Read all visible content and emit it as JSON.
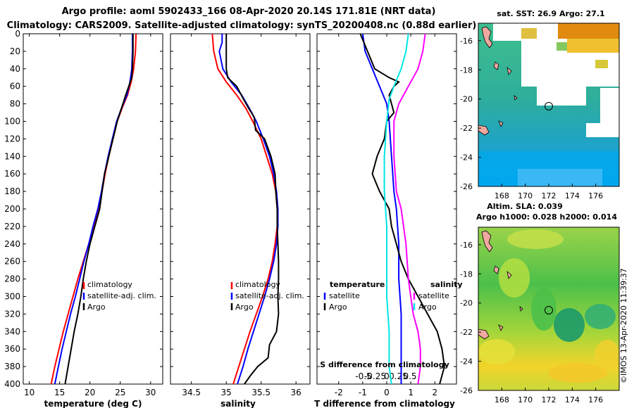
{
  "title": {
    "line1": "Argo profile: aoml 5902433_166 08-Apr-2020 20.14S 171.81E (NRT data)",
    "line2": "Climatology: CARS2009. Satellite-adjusted climatology: synTS_20200408.nc (0.88d earlier)"
  },
  "colors": {
    "climatology": "#ff0000",
    "satellite": "#0000ff",
    "argo": "#000000",
    "sat_temp": "#00e5e5",
    "sat_sal": "#ff00ff"
  },
  "depth_axis": {
    "ticks": [
      0,
      20,
      40,
      60,
      80,
      100,
      120,
      140,
      160,
      180,
      200,
      220,
      240,
      260,
      280,
      300,
      320,
      340,
      360,
      380,
      400
    ],
    "labels": [
      "0",
      "20",
      "40",
      "60",
      "80",
      "100",
      "120",
      "140",
      "160",
      "180",
      "200",
      "220",
      "240",
      "260",
      "280",
      "300",
      "320",
      "340",
      "360",
      "380",
      "400"
    ],
    "range": [
      0,
      400
    ]
  },
  "legend_text": {
    "climatology": "climatology",
    "satellite_adj": "satellite-adj. clim.",
    "argo": "Argo",
    "temperature": "temperature",
    "salinity": "salinity",
    "satellite": "satellite"
  },
  "chart_data": [
    {
      "type": "line",
      "panel": "temperature",
      "xlabel": "temperature (deg C)",
      "ylabel": "depth",
      "xlim": [
        9,
        32
      ],
      "ylim": [
        400,
        0
      ],
      "xticks": [
        10,
        15,
        20,
        25,
        30
      ],
      "xtick_labels": [
        "10",
        "15",
        "20",
        "25",
        "30"
      ],
      "series": [
        {
          "name": "climatology",
          "color": "#ff0000",
          "points": [
            [
              27.6,
              0
            ],
            [
              27.5,
              20
            ],
            [
              27.2,
              40
            ],
            [
              26.8,
              55
            ],
            [
              26.2,
              70
            ],
            [
              25.3,
              85
            ],
            [
              24.5,
              100
            ],
            [
              23.8,
              120
            ],
            [
              23.1,
              140
            ],
            [
              22.5,
              160
            ],
            [
              22.0,
              180
            ],
            [
              21.4,
              200
            ],
            [
              20.6,
              220
            ],
            [
              19.8,
              240
            ],
            [
              18.9,
              260
            ],
            [
              18.0,
              280
            ],
            [
              17.2,
              300
            ],
            [
              16.4,
              320
            ],
            [
              15.6,
              340
            ],
            [
              14.9,
              360
            ],
            [
              14.2,
              380
            ],
            [
              13.6,
              400
            ]
          ]
        },
        {
          "name": "satellite-adj. clim.",
          "color": "#0000ff",
          "points": [
            [
              27.0,
              0
            ],
            [
              27.0,
              20
            ],
            [
              26.9,
              40
            ],
            [
              26.6,
              55
            ],
            [
              26.1,
              70
            ],
            [
              25.2,
              85
            ],
            [
              24.4,
              100
            ],
            [
              23.7,
              120
            ],
            [
              23.0,
              140
            ],
            [
              22.4,
              160
            ],
            [
              21.9,
              180
            ],
            [
              21.3,
              200
            ],
            [
              20.5,
              220
            ],
            [
              19.8,
              240
            ],
            [
              19.0,
              260
            ],
            [
              18.3,
              280
            ],
            [
              17.6,
              300
            ],
            [
              16.8,
              320
            ],
            [
              16.1,
              340
            ],
            [
              15.4,
              360
            ],
            [
              14.8,
              380
            ],
            [
              14.2,
              400
            ]
          ]
        },
        {
          "name": "Argo",
          "color": "#000000",
          "points": [
            [
              27.1,
              0
            ],
            [
              27.1,
              20
            ],
            [
              27.0,
              40
            ],
            [
              26.9,
              50
            ],
            [
              26.4,
              60
            ],
            [
              25.9,
              70
            ],
            [
              25.2,
              85
            ],
            [
              24.5,
              100
            ],
            [
              23.8,
              120
            ],
            [
              23.1,
              140
            ],
            [
              22.4,
              160
            ],
            [
              22.0,
              180
            ],
            [
              21.6,
              200
            ],
            [
              20.8,
              220
            ],
            [
              20.0,
              240
            ],
            [
              19.4,
              260
            ],
            [
              18.9,
              280
            ],
            [
              18.5,
              300
            ],
            [
              18.0,
              320
            ],
            [
              17.4,
              340
            ],
            [
              16.9,
              360
            ],
            [
              16.4,
              380
            ],
            [
              15.9,
              400
            ]
          ]
        }
      ]
    },
    {
      "type": "line",
      "panel": "salinity",
      "xlabel": "salinity",
      "ylabel": "depth",
      "xlim": [
        34.2,
        36.2
      ],
      "ylim": [
        400,
        0
      ],
      "xticks": [
        34.5,
        35,
        35.5,
        36
      ],
      "xtick_labels": [
        "34.5",
        "35",
        "35.5",
        "36"
      ],
      "series": [
        {
          "name": "climatology",
          "color": "#ff0000",
          "points": [
            [
              34.8,
              0
            ],
            [
              34.82,
              20
            ],
            [
              34.88,
              40
            ],
            [
              35.0,
              55
            ],
            [
              35.15,
              70
            ],
            [
              35.28,
              85
            ],
            [
              35.38,
              100
            ],
            [
              35.5,
              120
            ],
            [
              35.58,
              140
            ],
            [
              35.66,
              160
            ],
            [
              35.71,
              180
            ],
            [
              35.73,
              200
            ],
            [
              35.73,
              220
            ],
            [
              35.7,
              240
            ],
            [
              35.66,
              260
            ],
            [
              35.6,
              280
            ],
            [
              35.52,
              300
            ],
            [
              35.43,
              320
            ],
            [
              35.34,
              340
            ],
            [
              35.26,
              360
            ],
            [
              35.18,
              380
            ],
            [
              35.1,
              400
            ]
          ]
        },
        {
          "name": "satellite-adj. clim.",
          "color": "#0000ff",
          "points": [
            [
              34.94,
              0
            ],
            [
              34.94,
              10
            ],
            [
              34.9,
              20
            ],
            [
              34.95,
              40
            ],
            [
              35.07,
              55
            ],
            [
              35.22,
              70
            ],
            [
              35.33,
              85
            ],
            [
              35.43,
              100
            ],
            [
              35.53,
              120
            ],
            [
              35.62,
              140
            ],
            [
              35.68,
              160
            ],
            [
              35.72,
              180
            ],
            [
              35.74,
              200
            ],
            [
              35.74,
              220
            ],
            [
              35.72,
              240
            ],
            [
              35.68,
              260
            ],
            [
              35.62,
              280
            ],
            [
              35.55,
              300
            ],
            [
              35.47,
              320
            ],
            [
              35.39,
              340
            ],
            [
              35.31,
              360
            ],
            [
              35.24,
              380
            ],
            [
              35.16,
              400
            ]
          ]
        },
        {
          "name": "Argo",
          "color": "#000000",
          "points": [
            [
              35.0,
              0
            ],
            [
              35.0,
              20
            ],
            [
              35.0,
              40
            ],
            [
              35.02,
              50
            ],
            [
              35.15,
              60
            ],
            [
              35.25,
              75
            ],
            [
              35.32,
              85
            ],
            [
              35.4,
              95
            ],
            [
              35.42,
              110
            ],
            [
              35.55,
              120
            ],
            [
              35.64,
              140
            ],
            [
              35.7,
              160
            ],
            [
              35.71,
              180
            ],
            [
              35.73,
              200
            ],
            [
              35.73,
              220
            ],
            [
              35.74,
              240
            ],
            [
              35.75,
              260
            ],
            [
              35.75,
              280
            ],
            [
              35.74,
              300
            ],
            [
              35.75,
              320
            ],
            [
              35.72,
              340
            ],
            [
              35.62,
              355
            ],
            [
              35.6,
              370
            ],
            [
              35.45,
              380
            ],
            [
              35.35,
              390
            ],
            [
              35.26,
              400
            ]
          ]
        }
      ]
    },
    {
      "type": "line",
      "panel": "difference",
      "xlabel": "T difference from climatology",
      "top_label": "S difference from climatology",
      "xlim": [
        -2.9,
        2.9
      ],
      "ylim": [
        400,
        0
      ],
      "xticks": [
        -2,
        -1,
        0,
        1,
        2
      ],
      "xtick_labels": [
        "-2",
        "-1",
        "0",
        "1",
        "2"
      ],
      "top_xticks": [
        -0.5,
        -0.25,
        0,
        0.25,
        0.5
      ],
      "top_xtick_labels": [
        "-0.5",
        "-0.25",
        "0",
        "0.25",
        "0.5"
      ],
      "series": [
        {
          "name": "temperature satellite",
          "color": "#0000ff",
          "points": [
            [
              -1.0,
              0
            ],
            [
              -0.9,
              20
            ],
            [
              -0.6,
              40
            ],
            [
              -0.3,
              60
            ],
            [
              0.0,
              80
            ],
            [
              0.1,
              100
            ],
            [
              0.2,
              140
            ],
            [
              0.3,
              180
            ],
            [
              0.4,
              200
            ],
            [
              0.5,
              240
            ],
            [
              0.5,
              280
            ],
            [
              0.6,
              320
            ],
            [
              0.6,
              360
            ],
            [
              0.6,
              400
            ]
          ]
        },
        {
          "name": "temperature Argo",
          "color": "#000000",
          "points": [
            [
              -1.1,
              0
            ],
            [
              -0.8,
              20
            ],
            [
              -0.5,
              40
            ],
            [
              0.1,
              50
            ],
            [
              0.5,
              55
            ],
            [
              0.3,
              60
            ],
            [
              0.1,
              70
            ],
            [
              0.2,
              80
            ],
            [
              0.3,
              90
            ],
            [
              0.0,
              100
            ],
            [
              -0.1,
              120
            ],
            [
              -0.4,
              140
            ],
            [
              -0.6,
              160
            ],
            [
              -0.3,
              180
            ],
            [
              0.1,
              200
            ],
            [
              0.2,
              220
            ],
            [
              0.4,
              240
            ],
            [
              0.6,
              260
            ],
            [
              0.9,
              280
            ],
            [
              1.3,
              300
            ],
            [
              1.7,
              320
            ],
            [
              2.1,
              340
            ],
            [
              2.3,
              360
            ],
            [
              2.4,
              380
            ],
            [
              2.2,
              400
            ]
          ]
        },
        {
          "name": "salinity satellite",
          "color": "#00e5e5",
          "points": [
            [
              0.9,
              0
            ],
            [
              0.8,
              20
            ],
            [
              0.6,
              40
            ],
            [
              0.3,
              60
            ],
            [
              0.1,
              75
            ],
            [
              0.0,
              100
            ],
            [
              -0.1,
              140
            ],
            [
              -0.1,
              180
            ],
            [
              0.0,
              220
            ],
            [
              0.0,
              260
            ],
            [
              0.0,
              300
            ],
            [
              0.1,
              340
            ],
            [
              0.1,
              380
            ],
            [
              0.2,
              400
            ]
          ]
        },
        {
          "name": "salinity Argo",
          "color": "#ff00ff",
          "points": [
            [
              1.6,
              0
            ],
            [
              1.5,
              20
            ],
            [
              1.3,
              40
            ],
            [
              0.9,
              60
            ],
            [
              0.5,
              80
            ],
            [
              0.3,
              100
            ],
            [
              0.3,
              140
            ],
            [
              0.4,
              180
            ],
            [
              0.6,
              200
            ],
            [
              0.8,
              240
            ],
            [
              0.9,
              280
            ],
            [
              1.0,
              300
            ],
            [
              1.1,
              320
            ],
            [
              1.3,
              340
            ],
            [
              1.4,
              360
            ],
            [
              1.4,
              380
            ],
            [
              1.3,
              400
            ]
          ]
        }
      ]
    },
    {
      "type": "heatmap",
      "panel": "sst_map",
      "title": "sat. SST: 26.9 Argo: 27.1",
      "xlim": [
        166,
        178
      ],
      "ylim": [
        -26,
        -14.8
      ],
      "xticks": [
        168,
        170,
        172,
        174,
        176
      ],
      "xtick_labels": [
        "168",
        "170",
        "172",
        "174",
        "176"
      ],
      "yticks": [
        -16,
        -18,
        -20,
        -22,
        -24,
        -26
      ],
      "ytick_labels": [
        "-16",
        "-18",
        "-20",
        "-22",
        "-24",
        "-26"
      ],
      "profile_location": [
        171.81,
        -20.14
      ]
    },
    {
      "type": "heatmap",
      "panel": "sla_map",
      "title_line1": "Altim. SLA: 0.039",
      "title_line2": "Argo h1000: 0.028 h2000: 0.014",
      "xlim": [
        166,
        178
      ],
      "ylim": [
        -26,
        -14.8
      ],
      "xticks": [
        168,
        170,
        172,
        174,
        176
      ],
      "xtick_labels": [
        "168",
        "170",
        "172",
        "174",
        "176"
      ],
      "yticks": [
        -16,
        -18,
        -20,
        -22,
        -24,
        -26
      ],
      "ytick_labels": [
        "-16",
        "-18",
        "-20",
        "-22",
        "-24",
        "-26"
      ],
      "profile_location": [
        171.81,
        -20.14
      ]
    }
  ],
  "stamp": "©IMOS 13-Apr-2020 11:39:37"
}
